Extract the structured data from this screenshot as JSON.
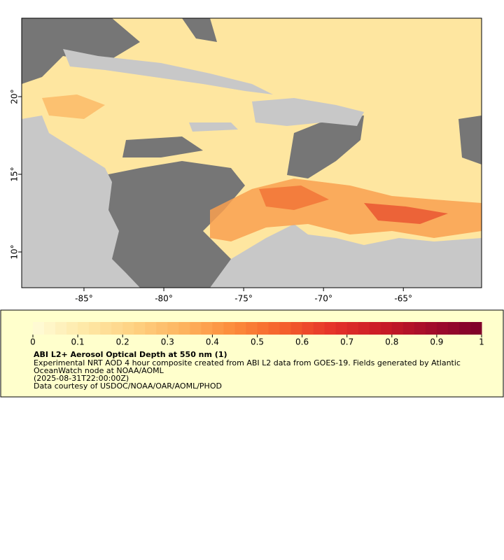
{
  "chart_data": {
    "type": "map",
    "xlim": [
      -88.9,
      -60.1
    ],
    "ylim": [
      7.7,
      25.05
    ],
    "xticks": [
      {
        "value": -85,
        "label": "-85°"
      },
      {
        "value": -80,
        "label": "-80°"
      },
      {
        "value": -75,
        "label": "-75°"
      },
      {
        "value": -70,
        "label": "-70°"
      },
      {
        "value": -65,
        "label": "-65°"
      }
    ],
    "yticks": [
      {
        "value": 10,
        "label": "10°"
      },
      {
        "value": 15,
        "label": "15°"
      },
      {
        "value": 20,
        "label": "20°"
      }
    ],
    "colorbar": {
      "lim": [
        0,
        1
      ],
      "ticks": [
        0,
        0.1,
        0.2,
        0.3,
        0.4,
        0.5,
        0.6,
        0.7,
        0.8,
        0.9,
        1
      ],
      "colors": [
        "#fffcd8",
        "#fee9a8",
        "#fed283",
        "#fdb45f",
        "#fc8d3c",
        "#f5612c",
        "#e5332a",
        "#c91a25",
        "#a20c2b",
        "#7d0029"
      ]
    },
    "title": "ABI L2+ Aerosol Optical Depth at 550 nm (1)",
    "description": [
      "Experimental NRT AOD 4 hour composite created from ABI L2 data from GOES-19. Fields generated by Atlantic",
      "OceanWatch node at NOAA/AOML",
      "(2025-08-31T22:00:00Z)"
    ],
    "credit": "Data courtesy of USDOC/NOAA/OAR/AOML/PHOD"
  }
}
